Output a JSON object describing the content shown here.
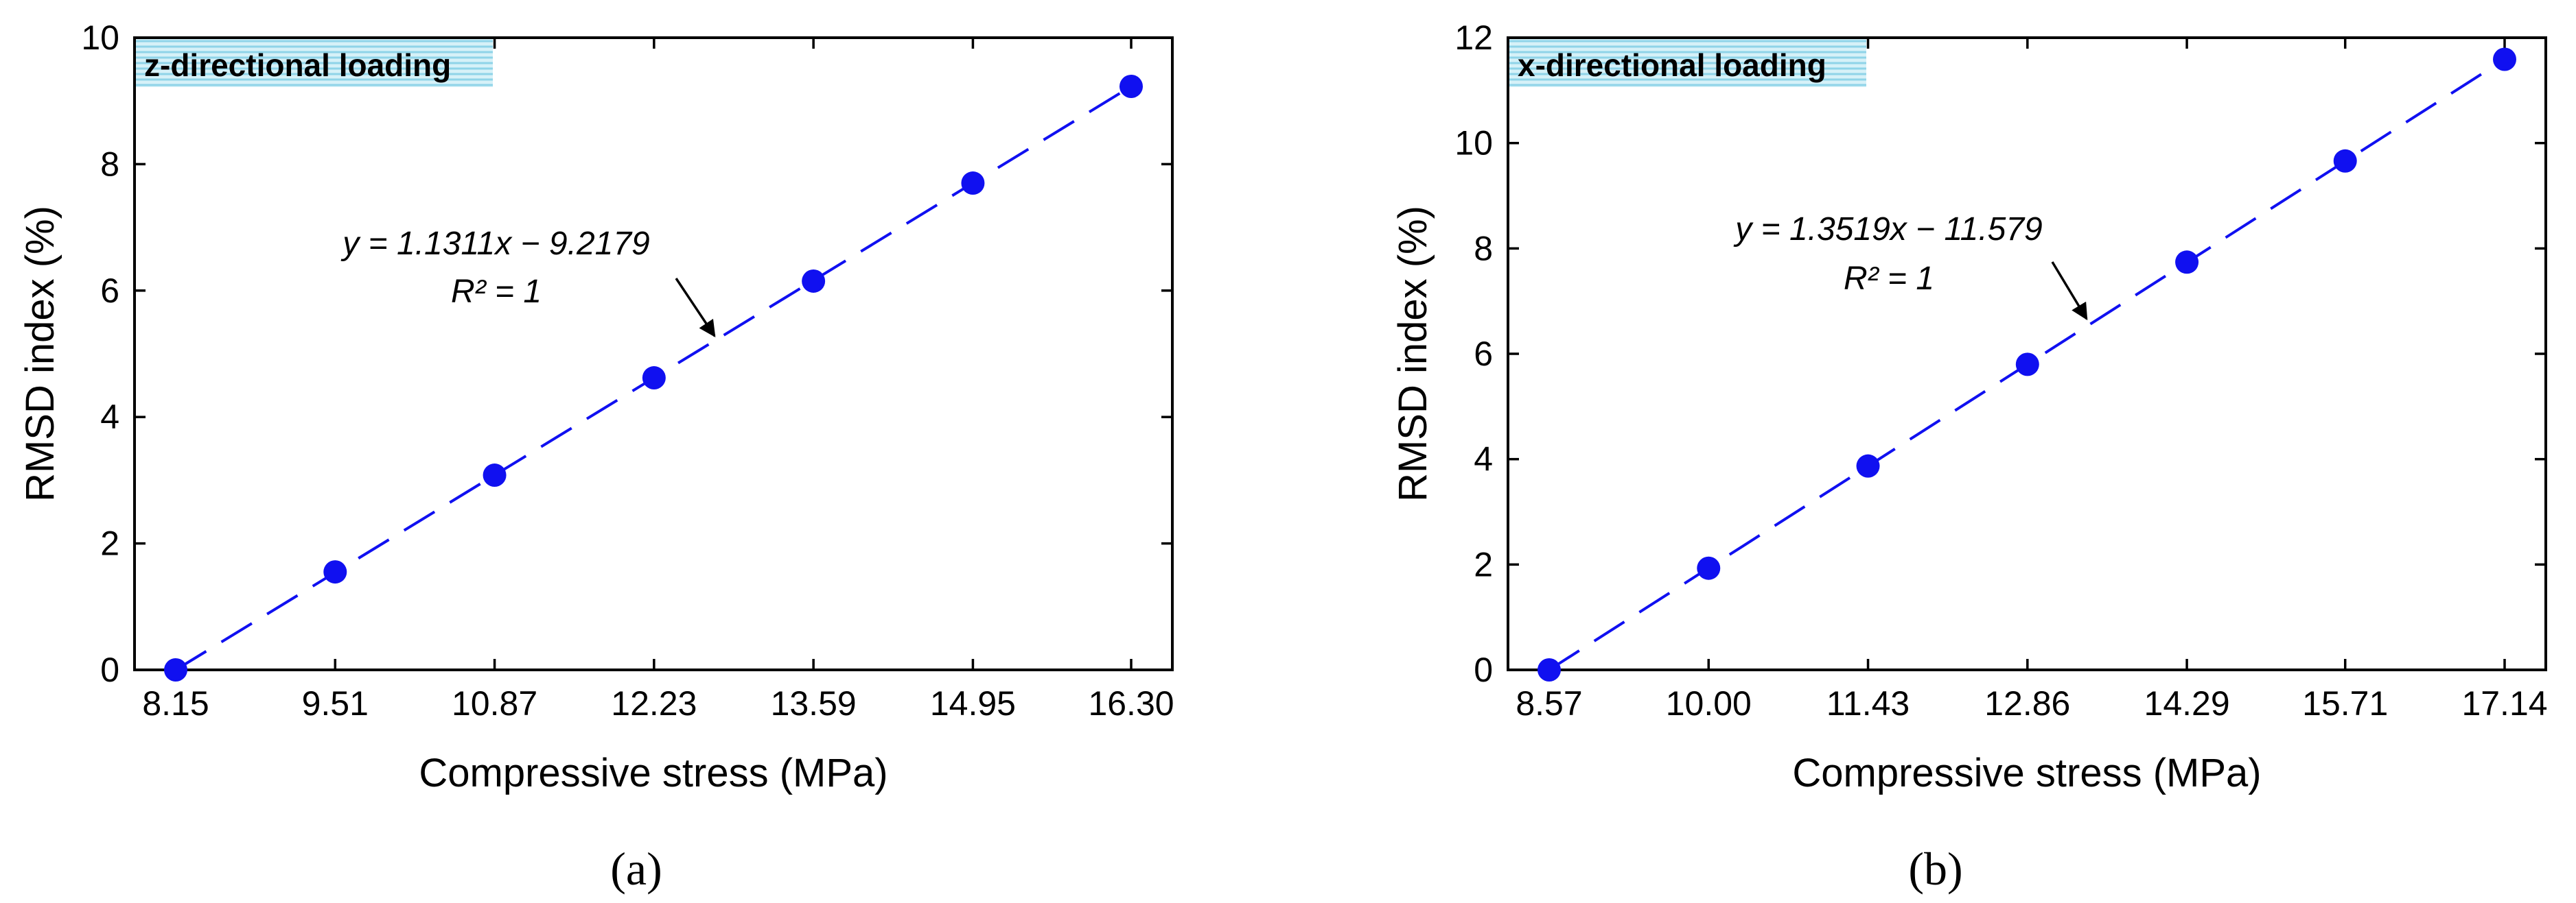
{
  "chart_data": [
    {
      "type": "scatter",
      "panel_label": "(a)",
      "tag": "z-directional loading",
      "xlabel": "Compressive stress (MPa)",
      "ylabel": "RMSD index (%)",
      "x_ticks": [
        "8.15",
        "9.51",
        "10.87",
        "12.23",
        "13.59",
        "14.95",
        "16.30"
      ],
      "y_ticks": [
        "0",
        "2",
        "4",
        "6",
        "8",
        "10"
      ],
      "ylim": [
        0,
        10
      ],
      "series": [
        {
          "name": "RMSD",
          "x": [
            8.15,
            9.51,
            10.87,
            12.23,
            13.59,
            14.95,
            16.3
          ],
          "y": [
            0.0,
            1.55,
            3.08,
            4.62,
            6.15,
            7.7,
            9.23
          ]
        }
      ],
      "fit": {
        "slope": 1.1311,
        "intercept": -9.2179,
        "style": "dashed"
      },
      "equation": "y = 1.1311x − 9.2179",
      "r2": "R² = 1",
      "colors": {
        "marker": "#1010f0",
        "fit_line": "#1010f0"
      }
    },
    {
      "type": "scatter",
      "panel_label": "(b)",
      "tag": "x-directional loading",
      "xlabel": "Compressive stress (MPa)",
      "ylabel": "RMSD index (%)",
      "x_ticks": [
        "8.57",
        "10.00",
        "11.43",
        "12.86",
        "14.29",
        "15.71",
        "17.14"
      ],
      "y_ticks": [
        "0",
        "2",
        "4",
        "6",
        "8",
        "10",
        "12"
      ],
      "ylim": [
        0,
        12
      ],
      "series": [
        {
          "name": "RMSD",
          "x": [
            8.57,
            10.0,
            11.43,
            12.86,
            14.29,
            15.71,
            17.14
          ],
          "y": [
            0.0,
            1.93,
            3.87,
            5.8,
            7.74,
            9.66,
            11.59
          ]
        }
      ],
      "fit": {
        "slope": 1.3519,
        "intercept": -11.579,
        "style": "dashed"
      },
      "equation": "y = 1.3519x − 11.579",
      "r2": "R² = 1",
      "colors": {
        "marker": "#1010f0",
        "fit_line": "#1010f0"
      }
    }
  ]
}
